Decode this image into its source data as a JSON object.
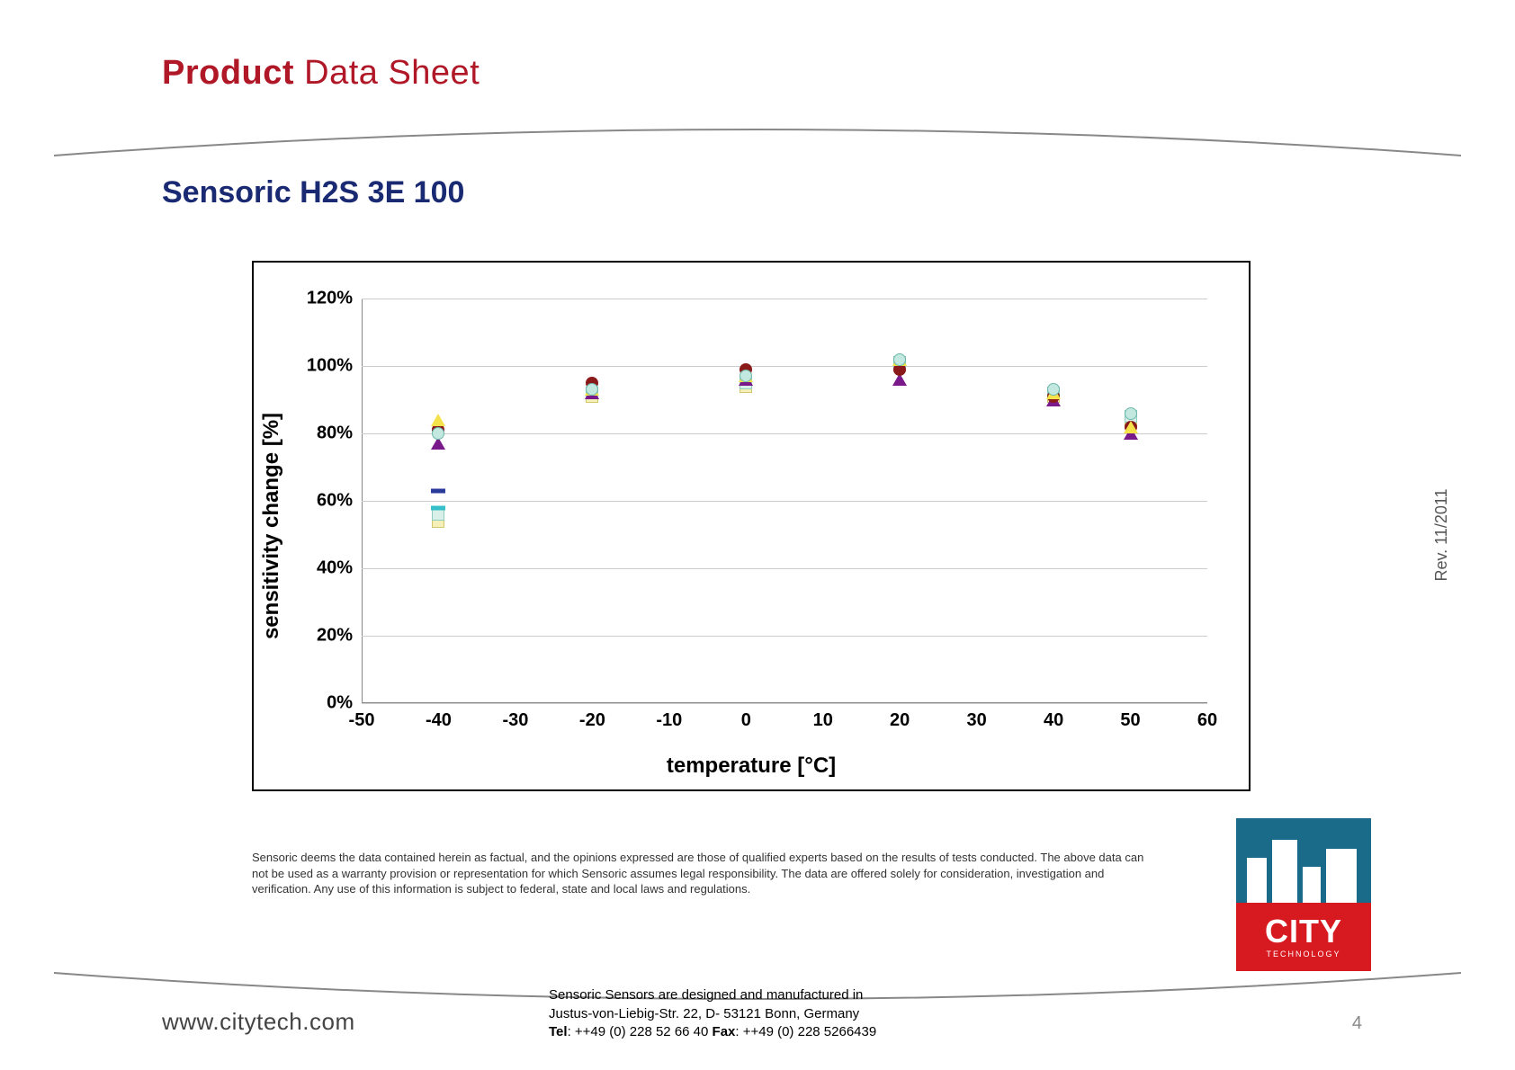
{
  "header": {
    "title_bold": "Product",
    "title_light": " Data Sheet"
  },
  "product_name": "Sensoric H2S 3E 100",
  "chart": {
    "type": "scatter",
    "xlabel": "temperature [°C]",
    "ylabel": "sensitivity change [%]",
    "xlim": [
      -50,
      60
    ],
    "xtick_step": 10,
    "ylim": [
      0,
      120
    ],
    "ytick_step": 20,
    "ytick_suffix": "%",
    "background_color": "#ffffff",
    "grid_color": "#cccccc",
    "label_fontsize": 24,
    "tick_fontsize": 20,
    "series": [
      {
        "shape": "square",
        "color": "#f5f0b8",
        "border": "#d0c86a",
        "points": [
          [
            -40,
            54
          ],
          [
            -20,
            91
          ],
          [
            0,
            94
          ],
          [
            20,
            100
          ],
          [
            40,
            91
          ],
          [
            50,
            84
          ]
        ]
      },
      {
        "shape": "square",
        "color": "#d8f0e8",
        "border": "#8fccc0",
        "points": [
          [
            -40,
            56
          ],
          [
            -20,
            92
          ],
          [
            0,
            95
          ],
          [
            20,
            101
          ],
          [
            40,
            92
          ],
          [
            50,
            85
          ]
        ]
      },
      {
        "shape": "dash",
        "color": "#35c0c9",
        "points": [
          [
            -40,
            58
          ]
        ]
      },
      {
        "shape": "dash",
        "color": "#2a3a9a",
        "points": [
          [
            -40,
            63
          ]
        ]
      },
      {
        "shape": "triangle",
        "color": "#7a1a8a",
        "points": [
          [
            -40,
            77
          ],
          [
            -20,
            92
          ],
          [
            0,
            96
          ],
          [
            20,
            96
          ],
          [
            40,
            90
          ],
          [
            50,
            80
          ]
        ]
      },
      {
        "shape": "circle",
        "color": "#8a1a1a",
        "points": [
          [
            -40,
            81
          ],
          [
            -20,
            95
          ],
          [
            0,
            99
          ],
          [
            20,
            99
          ],
          [
            40,
            91
          ],
          [
            50,
            82
          ]
        ]
      },
      {
        "shape": "triangle",
        "color": "#f5e24a",
        "points": [
          [
            -40,
            84
          ],
          [
            -20,
            93
          ],
          [
            0,
            97
          ],
          [
            20,
            102
          ],
          [
            40,
            92
          ],
          [
            50,
            82
          ]
        ]
      },
      {
        "shape": "circle",
        "color": "#c2e8e0",
        "border": "#6db8aa",
        "points": [
          [
            -40,
            80
          ],
          [
            -20,
            93
          ],
          [
            0,
            97
          ],
          [
            20,
            102
          ],
          [
            40,
            93
          ],
          [
            50,
            86
          ]
        ]
      }
    ]
  },
  "disclaimer": "Sensoric deems the data contained herein as factual, and the opinions expressed are those of qualified experts based on the results of tests conducted. The above data can not be used as a warranty provision or representation for which Sensoric assumes legal responsibility. The data are offered solely for consideration, investigation and verification. Any use of this information is subject to federal, state and local laws and regulations.",
  "footer": {
    "line1": "Sensoric Sensors are designed and manufactured in",
    "line2": "Justus-von-Liebig-Str. 22, D- 53121 Bonn, Germany",
    "line3_label_tel": "Tel",
    "line3_tel": ": ++49 (0) 228 52 66 40  ",
    "line3_label_fax": "Fax",
    "line3_fax": ": ++49 (0) 228 5266439",
    "url": "www.citytech.com",
    "page": "4",
    "revision": "Rev.  11/2011"
  },
  "logo": {
    "brand": "CITY",
    "sub": "TECHNOLOGY"
  }
}
